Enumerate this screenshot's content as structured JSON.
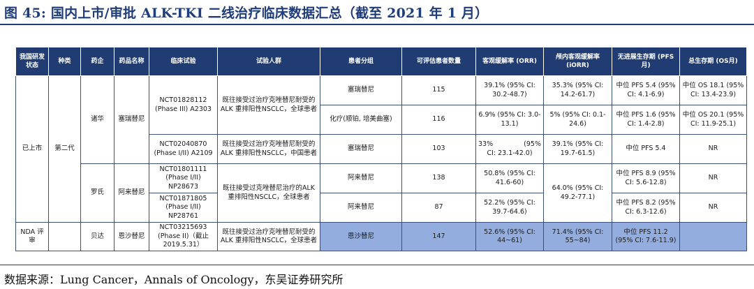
{
  "figure": {
    "title": "图 45:  国内上市/审批 ALK-TKI  二线治疗临床数据汇总（截至 2021 年 1 月）",
    "source": "数据来源：Lung Cancer，Annals of Oncology，东吴证券研究所"
  },
  "table": {
    "headers": {
      "status": "我国研发状态",
      "type": "种类",
      "company": "药企",
      "drug": "药品名称",
      "trial": "临床试验",
      "population": "试验人群",
      "group": "患者分组",
      "n": "可评估患者数量",
      "orr": "客观缓解率 (ORR)",
      "iorr": "颅内客观缓解率 (iORR)",
      "pfs": "无进展生存期 (PFS月)",
      "os": "总生存期 (OS月)"
    },
    "cells": {
      "status_marketed": "已上市",
      "status_nda": "NDA 评审",
      "type_second_gen": "第二代",
      "company_zhuhua": "诸华",
      "company_roche": "罗氏",
      "company_beida": "贝达",
      "drug_ceritinib": "塞瑞替尼",
      "drug_alectinib": "阿来替尼",
      "drug_ensartinib": "恩沙替尼",
      "trial_1": "NCT01828112 (Phase III) A2303",
      "trial_2": "NCT02040870 (Phase I/II) A2109",
      "trial_3": "NCT01801111 (Phase I/II) NP28673",
      "trial_4": "NCT01871805 (Phase I/II) NP28761",
      "trial_5": "NCT03215693 (Phase II)（截止 2019.5.31）",
      "pop_1": "既往接受过治疗克唑替尼耐受的 ALK 重排阳性NSCLC，全球患者",
      "pop_2": "既往接受过治疗克唑替尼耐受的 ALK 重排阳性NSCLC，中国患者",
      "pop_3": "既往接受过克唑替尼治疗的ALK 重排阳性NSCLC，全球患者",
      "pop_4": "既往接受过治疗克唑替尼耐受的 ALK 重排阳性NSCLC，全球患者",
      "group_1": "塞瑞替尼",
      "group_2": "化疗(顺铂, 培美曲塞)",
      "group_3": "塞瑞替尼",
      "group_4": "阿来替尼",
      "group_5": "阿来替尼",
      "group_6": "恩沙替尼",
      "n_1": "115",
      "n_2": "116",
      "n_3": "103",
      "n_4": "138",
      "n_5": "87",
      "n_6": "147",
      "orr_1": "39.1% (95% CI: 30.2-48.7)",
      "orr_2": "6.9% (95% CI: 3.0-13.1)",
      "orr_3a": "33%",
      "orr_3b": "(95%",
      "orr_3c": "CI: 23.1-42.0)",
      "orr_4": "50.8% (95% CI: 41.6-60)",
      "orr_5": "52.2% (95% CI: 39.7-64.6)",
      "orr_6": "52.6% (95% CI: 44~61)",
      "iorr_1": "35.3% (95% CI: 14.2-61.7)",
      "iorr_2": "5% (95% CI: 0.1-24.6)",
      "iorr_3": "39.1% (95% CI: 19.7-61.5)",
      "iorr_4": "64.0% (95% CI: 49.2-77.1)",
      "iorr_6": "71.4% (95% CI: 55~84)",
      "pfs_1": "中位 PFS 5.4 (95% CI: 4.1-6.9)",
      "pfs_2": "中位 PFS 1.6 (95% CI: 1.4-2.8)",
      "pfs_3": "中位 PFS 5.4",
      "pfs_4": "中位 PFS 8.9 (95% CI: 5.6-12.8)",
      "pfs_5": "中位 PFS 8.2 (95% CI: 6.3-12.6)",
      "pfs_6": "中位 PFS 11.2 (95% CI: 7.6-11.9)",
      "os_1": "中位 OS 18.1 (95% CI: 13.4-23.9)",
      "os_2": "中位 OS 20.1 (95% CI: 11.9-25.1)",
      "os_3": "NR",
      "os_4": "NR",
      "os_5": "NR",
      "os_6": ""
    }
  },
  "colors": {
    "header_bg": "#203c73",
    "title_color": "#1f3d7a",
    "highlight_bg": "#93aede",
    "border": "#3a4f7a"
  }
}
